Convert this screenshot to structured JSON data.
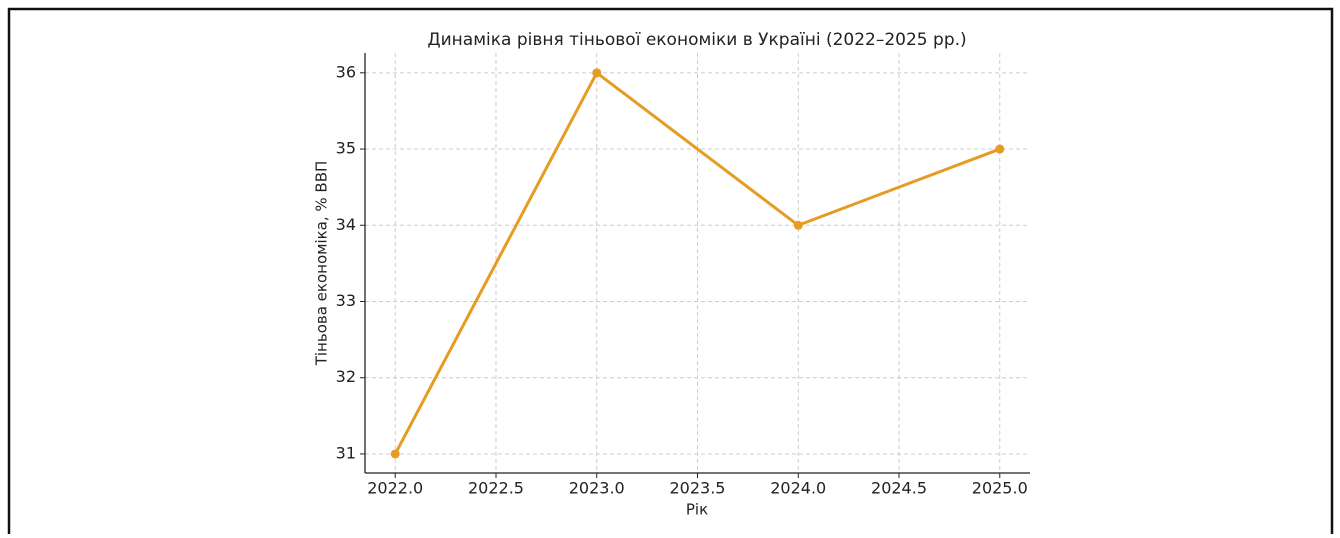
{
  "chart_data": {
    "type": "line",
    "title": "Динаміка рівня тіньової економіки в Україні (2022–2025 рр.)",
    "x_label": "Рік",
    "y_label": "Тіньова економіка, % ВВП",
    "x": [
      2022,
      2023,
      2024,
      2025
    ],
    "series": [
      {
        "name": "Тіньова економіка",
        "color": "#e69b22",
        "values": [
          31,
          36,
          34,
          35
        ]
      }
    ],
    "xlim": [
      2021.85,
      2025.15
    ],
    "xticks": [
      {
        "value": 2022,
        "label": "2022.0"
      },
      {
        "value": 2022.5,
        "label": "2022.5"
      },
      {
        "value": 2023,
        "label": "2023.0"
      },
      {
        "value": 2023.5,
        "label": "2023.5"
      },
      {
        "value": 2024,
        "label": "2024.0"
      },
      {
        "value": 2024.5,
        "label": "2024.5"
      },
      {
        "value": 2025,
        "label": "2025.0"
      }
    ],
    "ylim": [
      30.75,
      36.26
    ],
    "yticks": [
      31,
      32,
      33,
      34,
      35,
      36
    ],
    "grid": true
  }
}
